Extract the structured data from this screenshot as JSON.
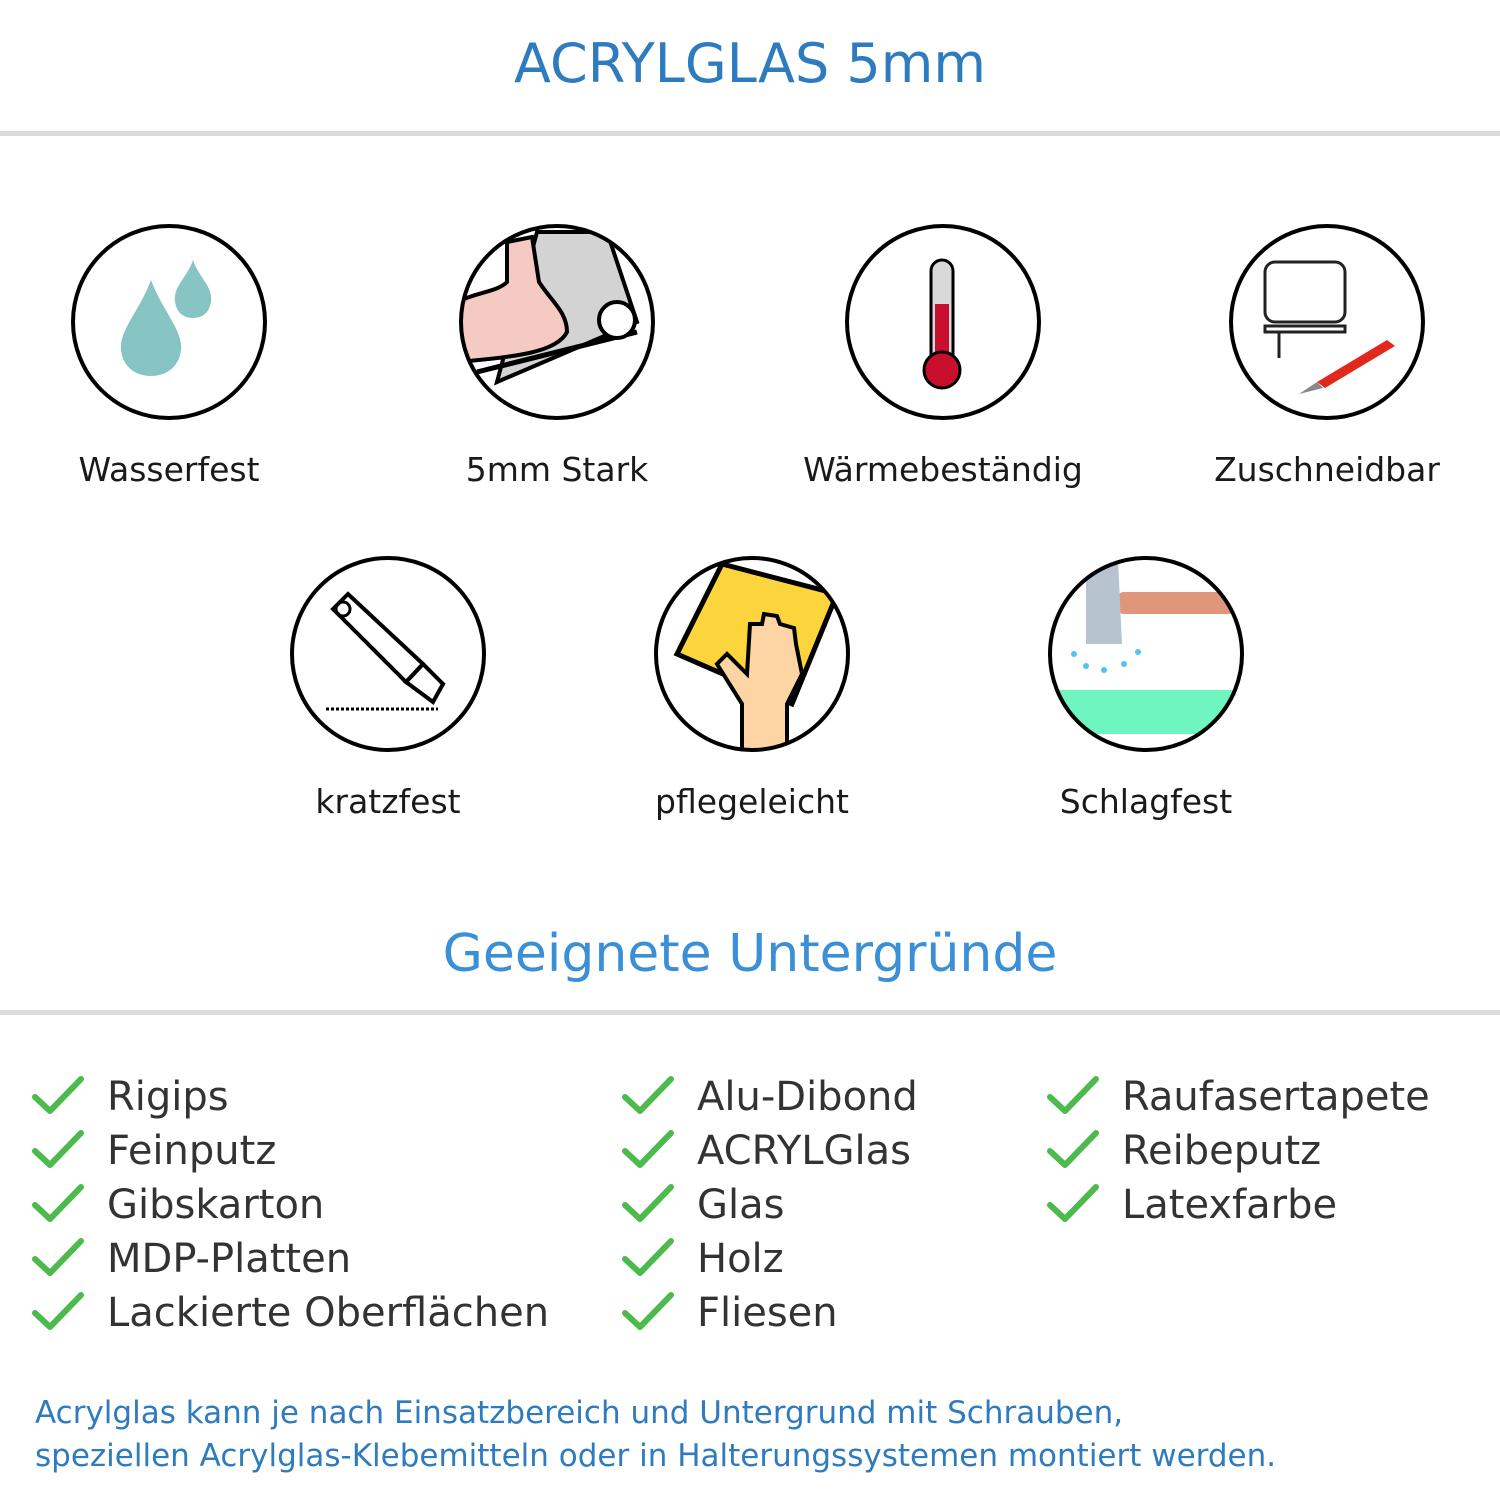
{
  "header": {
    "title": "ACRYLGLAS 5mm"
  },
  "features": [
    {
      "label": "Wasserfest",
      "icon": "water-drops-icon"
    },
    {
      "label": "5mm Stark",
      "icon": "strong-arm-icon"
    },
    {
      "label": "Wärmebeständig",
      "icon": "thermometer-icon"
    },
    {
      "label": "Zuschneidbar",
      "icon": "jigsaw-cutter-icon"
    },
    {
      "label": "kratzfest",
      "icon": "box-cutter-icon"
    },
    {
      "label": "pflegeleicht",
      "icon": "cleaning-sponge-icon"
    },
    {
      "label": "Schlagfest",
      "icon": "hammer-icon"
    }
  ],
  "surfaces": {
    "title": "Geeignete Untergründe",
    "columns": [
      [
        "Rigips",
        "Feinputz",
        "Gibskarton",
        "MDP-Platten",
        "Lackierte Oberflächen"
      ],
      [
        "Alu-Dibond",
        "ACRYLGlas",
        "Glas",
        "Holz",
        "Fliesen"
      ],
      [
        "Raufasertapete",
        "Reibeputz",
        "Latexfarbe"
      ]
    ]
  },
  "footer": {
    "line1": "Acrylglas kann je nach Einsatzbereich und Untergrund mit Schrauben,",
    "line2": "speziellen Acrylglas-Klebemitteln oder in Halterungssystemen montiert werden."
  },
  "colors": {
    "title": "#2f7bbf",
    "check": "#4cba4c",
    "text": "#333333"
  }
}
